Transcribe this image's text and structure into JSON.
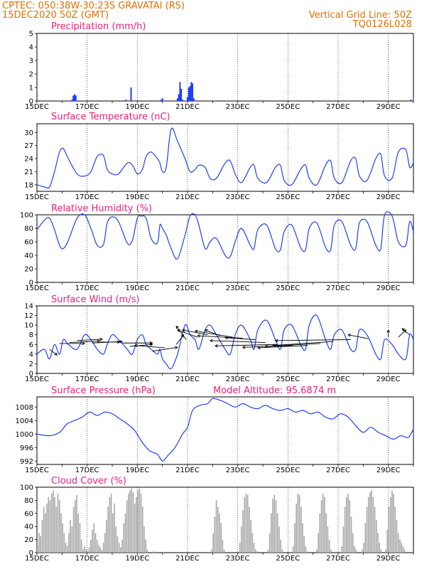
{
  "header": {
    "line1": "CPTEC:   050:38W-30:23S   GRAVATAI (RS)",
    "line2": "15DEC2020 50Z (GMT)",
    "right1": "Vertical Grid Line: 50Z",
    "right2": "TQ0126L028",
    "color": "#e07000"
  },
  "colors": {
    "title": "#e8207a",
    "line": "#1f3ff5",
    "cloud": "#a8a8a8",
    "bar": "#1f3ff5"
  },
  "x_axis": {
    "labels": [
      "15DEC",
      "17DEC",
      "19DEC",
      "21DEC",
      "23DEC",
      "25DEC",
      "27DEC",
      "29DEC"
    ],
    "label_days": [
      0,
      2,
      4,
      6,
      8,
      10,
      12,
      14
    ],
    "range_days": [
      0,
      15
    ]
  },
  "chart_data": [
    {
      "type": "bar",
      "title": "Precipitation (mm/h)",
      "ylim": [
        0,
        5
      ],
      "yticks": [
        0,
        1,
        2,
        3,
        4,
        5
      ],
      "x": [
        1.4,
        1.45,
        1.5,
        1.55,
        3.55,
        3.75,
        4.95,
        5.0,
        5.6,
        5.65,
        5.7,
        5.75,
        5.8,
        6.0,
        6.05,
        6.1,
        6.15,
        6.2,
        6.25,
        14.9
      ],
      "values": [
        0.1,
        0.4,
        0.5,
        0.4,
        0.1,
        1.0,
        0.1,
        0.2,
        0.2,
        0.5,
        1.4,
        0.9,
        0.1,
        0.3,
        1.0,
        1.1,
        1.4,
        1.3,
        0.2,
        0.1
      ]
    },
    {
      "type": "line",
      "title": "Surface Temperature (nC)",
      "ylim": [
        16.5,
        32
      ],
      "yticks": [
        18,
        21,
        24,
        27,
        30
      ],
      "x": [
        0,
        0.3,
        0.5,
        0.7,
        0.9,
        1.05,
        1.25,
        1.6,
        1.9,
        2.15,
        2.4,
        2.65,
        2.8,
        3.0,
        3.25,
        3.6,
        3.8,
        4.0,
        4.2,
        4.35,
        4.55,
        4.8,
        4.9,
        5.0,
        5.15,
        5.35,
        5.6,
        5.9,
        6.1,
        6.3,
        6.45,
        6.7,
        6.9,
        7.15,
        7.5,
        7.7,
        7.9,
        8.15,
        8.5,
        8.65,
        8.8,
        9.15,
        9.5,
        9.7,
        9.85,
        10.15,
        10.5,
        10.7,
        10.85,
        11.15,
        11.5,
        11.7,
        11.85,
        12.15,
        12.5,
        12.7,
        12.85,
        13.15,
        13.5,
        13.7,
        13.85,
        14.15,
        14.4,
        14.7,
        14.85,
        15.0
      ],
      "values": [
        18,
        17.5,
        17.5,
        21,
        25.5,
        26.3,
        24,
        20.5,
        20,
        21,
        24.5,
        24.7,
        21.5,
        20.5,
        20.5,
        23,
        22.5,
        20.5,
        21.5,
        24.5,
        25.5,
        24,
        23,
        21,
        22,
        30.8,
        28,
        24,
        21,
        21.5,
        22.5,
        22,
        19.5,
        19.5,
        23,
        23.5,
        20.5,
        18.5,
        22,
        22.5,
        19.5,
        18.5,
        22,
        22.5,
        19,
        18,
        21.5,
        22.5,
        19.5,
        18,
        22.5,
        23.5,
        19.5,
        18.5,
        23.5,
        24,
        20,
        19,
        24,
        25,
        20,
        19.5,
        25.5,
        26,
        22,
        23
      ]
    },
    {
      "type": "line",
      "title": "Relative Humidity (%)",
      "ylim": [
        0,
        100
      ],
      "yticks": [
        0,
        20,
        40,
        60,
        80,
        100
      ],
      "x": [
        0,
        0.3,
        0.5,
        0.7,
        0.9,
        1.05,
        1.25,
        1.6,
        1.9,
        2.15,
        2.4,
        2.65,
        2.8,
        3.0,
        3.25,
        3.6,
        3.8,
        4.0,
        4.15,
        4.35,
        4.55,
        4.8,
        4.9,
        5.0,
        5.15,
        5.35,
        5.6,
        5.9,
        6.1,
        6.3,
        6.45,
        6.7,
        6.9,
        7.15,
        7.5,
        7.7,
        7.9,
        8.15,
        8.5,
        8.65,
        8.8,
        9.15,
        9.5,
        9.7,
        9.85,
        10.15,
        10.5,
        10.7,
        10.85,
        11.15,
        11.5,
        11.7,
        11.85,
        12.15,
        12.5,
        12.7,
        12.85,
        13.15,
        13.5,
        13.7,
        13.85,
        14.15,
        14.4,
        14.7,
        14.85,
        15.0
      ],
      "values": [
        78,
        92,
        95,
        78,
        55,
        50,
        62,
        95,
        100,
        80,
        55,
        56,
        88,
        97,
        90,
        58,
        62,
        95,
        98,
        95,
        65,
        58,
        85,
        80,
        70,
        50,
        35,
        70,
        98,
        100,
        85,
        50,
        60,
        65,
        40,
        38,
        60,
        80,
        55,
        50,
        78,
        85,
        50,
        48,
        75,
        85,
        52,
        48,
        80,
        88,
        52,
        48,
        85,
        90,
        55,
        50,
        88,
        90,
        55,
        50,
        100,
        98,
        60,
        55,
        90,
        75
      ]
    },
    {
      "type": "line",
      "title": "Surface Wind (m/s)",
      "ylim": [
        0,
        14
      ],
      "yticks": [
        0,
        2,
        4,
        6,
        8,
        10,
        12,
        14
      ],
      "x": [
        0,
        0.3,
        0.5,
        0.7,
        0.9,
        1.05,
        1.25,
        1.6,
        1.9,
        2.15,
        2.4,
        2.65,
        2.8,
        3.0,
        3.25,
        3.6,
        3.8,
        4.0,
        4.2,
        4.35,
        4.55,
        4.8,
        4.9,
        5.0,
        5.15,
        5.35,
        5.6,
        5.9,
        6.1,
        6.3,
        6.45,
        6.7,
        6.9,
        7.15,
        7.5,
        7.7,
        7.9,
        8.15,
        8.5,
        8.65,
        8.8,
        9.15,
        9.5,
        9.7,
        9.85,
        10.15,
        10.5,
        10.7,
        10.85,
        11.15,
        11.5,
        11.7,
        11.85,
        12.15,
        12.5,
        12.7,
        12.85,
        13.15,
        13.5,
        13.7,
        13.85,
        14.15,
        14.4,
        14.7,
        14.85,
        15.0
      ],
      "values": [
        4,
        5,
        3,
        6,
        4,
        7,
        6,
        5,
        8,
        7,
        5,
        4,
        6,
        8,
        7,
        5,
        4,
        7,
        8,
        6,
        5,
        4,
        5,
        3,
        2,
        1,
        4,
        10,
        8,
        7,
        5,
        9,
        10,
        8,
        5,
        4,
        8,
        10,
        7,
        5,
        9,
        11,
        7,
        5,
        9,
        10,
        6,
        5,
        10,
        12,
        7,
        5,
        8,
        9,
        5,
        5,
        9,
        8,
        4,
        3,
        7,
        6,
        4,
        3,
        8,
        7
      ],
      "arrows": [
        {
          "x": 0.5,
          "y": 5,
          "u": 0.3,
          "v": -1.2
        },
        {
          "x": 0.9,
          "y": 6.2,
          "u": 1,
          "v": 0
        },
        {
          "x": 1.3,
          "y": 6.4,
          "u": 1.2,
          "v": 0.3
        },
        {
          "x": 1.6,
          "y": 6.8,
          "u": 1,
          "v": 0.3
        },
        {
          "x": 2.2,
          "y": 6.3,
          "u": 1.2,
          "v": 0.3
        },
        {
          "x": 2.5,
          "y": 6.5,
          "u": 0.8,
          "v": 0
        },
        {
          "x": 3.4,
          "y": 6.3,
          "u": 1.2,
          "v": 0
        },
        {
          "x": 3.7,
          "y": 5.6,
          "u": 0.9,
          "v": 0.4
        },
        {
          "x": 4.6,
          "y": 4.6,
          "u": 1,
          "v": 0.8
        },
        {
          "x": 5.1,
          "y": 5.3,
          "u": -1.2,
          "v": 0.5
        },
        {
          "x": 5.55,
          "y": 6,
          "u": 0.3,
          "v": 2
        },
        {
          "x": 5.95,
          "y": 7,
          "u": -0.4,
          "v": 2.8
        },
        {
          "x": 6.4,
          "y": 7.5,
          "u": -0.8,
          "v": 1.5
        },
        {
          "x": 6.8,
          "y": 8,
          "u": -1,
          "v": 1
        },
        {
          "x": 7.3,
          "y": 7.8,
          "u": -0.6,
          "v": 1.2
        },
        {
          "x": 7.8,
          "y": 7.5,
          "u": -1.5,
          "v": 1.3
        },
        {
          "x": 8.2,
          "y": 7.3,
          "u": -1.8,
          "v": 0.5
        },
        {
          "x": 8.7,
          "y": 7,
          "u": -1.2,
          "v": 0.4
        },
        {
          "x": 9.1,
          "y": 6.4,
          "u": -2.2,
          "v": 0.4
        },
        {
          "x": 9.6,
          "y": 6,
          "u": -2.5,
          "v": -0.3
        },
        {
          "x": 10.2,
          "y": 5.8,
          "u": -2,
          "v": -0.4
        },
        {
          "x": 10.8,
          "y": 5.8,
          "u": -2,
          "v": -0.5
        },
        {
          "x": 11.3,
          "y": 6.2,
          "u": -2.2,
          "v": -0.6
        },
        {
          "x": 11.8,
          "y": 6.6,
          "u": -2.4,
          "v": -0.8
        },
        {
          "x": 12.5,
          "y": 7,
          "u": -3,
          "v": -0.2
        },
        {
          "x": 13.2,
          "y": 7.2,
          "u": -0.8,
          "v": 0.8
        },
        {
          "x": 14.0,
          "y": 7.5,
          "u": 0,
          "v": 1.5
        },
        {
          "x": 14.4,
          "y": 7.5,
          "u": 0.3,
          "v": 1.5
        },
        {
          "x": 14.85,
          "y": 8,
          "u": -0.3,
          "v": 1.3
        }
      ]
    },
    {
      "type": "line",
      "title": "Surface Pressure (hPa)",
      "annotation": "Model Altitude: 95.6874 m",
      "ylim": [
        991,
        1011
      ],
      "yticks": [
        992,
        996,
        1000,
        1004,
        1008
      ],
      "x": [
        0,
        0.5,
        0.9,
        1.2,
        1.5,
        1.8,
        2.1,
        2.4,
        2.7,
        3.0,
        3.3,
        3.6,
        3.9,
        4.2,
        4.5,
        4.8,
        5.0,
        5.2,
        5.5,
        5.8,
        6.0,
        6.2,
        6.5,
        6.8,
        7.0,
        7.3,
        7.6,
        7.9,
        8.2,
        8.5,
        8.8,
        9.1,
        9.4,
        9.7,
        10.0,
        10.3,
        10.6,
        10.9,
        11.2,
        11.5,
        11.8,
        12.1,
        12.4,
        12.7,
        13.0,
        13.3,
        13.6,
        13.9,
        14.2,
        14.5,
        14.8,
        15.0
      ],
      "values": [
        1000,
        999.5,
        1000.5,
        1003,
        1004,
        1005,
        1006.5,
        1005.5,
        1006.5,
        1006,
        1004.5,
        1003,
        1001,
        997.5,
        995,
        994,
        992,
        993.5,
        996,
        1000,
        1002,
        1007,
        1008.5,
        1009,
        1010.5,
        1010,
        1009,
        1008,
        1009,
        1008,
        1007.5,
        1008.5,
        1007.5,
        1007,
        1007.5,
        1006.5,
        1007,
        1006,
        1006.5,
        1005,
        1004.5,
        1006,
        1005,
        1002.5,
        1000.5,
        1002,
        1000.5,
        999.5,
        998.5,
        999.5,
        999,
        1001.5
      ]
    },
    {
      "type": "bar",
      "title": "Cloud Cover (%)",
      "ylim": [
        0,
        100
      ],
      "yticks": [
        0,
        20,
        40,
        60,
        80,
        100
      ],
      "x_start": 0,
      "x_step": 0.0625,
      "values": [
        10,
        30,
        25,
        50,
        70,
        60,
        75,
        85,
        80,
        90,
        95,
        85,
        70,
        90,
        80,
        60,
        45,
        30,
        15,
        10,
        30,
        50,
        40,
        70,
        80,
        88,
        60,
        45,
        20,
        5,
        10,
        5,
        3,
        8,
        20,
        35,
        45,
        30,
        20,
        12,
        8,
        4,
        15,
        30,
        50,
        70,
        85,
        90,
        60,
        75,
        40,
        25,
        15,
        8,
        20,
        45,
        60,
        80,
        90,
        95,
        98,
        92,
        75,
        85,
        95,
        98,
        90,
        70,
        40,
        20,
        5,
        0,
        0,
        0,
        2,
        1,
        0,
        0,
        0,
        0,
        1,
        0,
        0,
        0,
        0,
        0,
        0,
        0,
        0,
        0,
        0,
        0,
        0,
        0,
        0,
        0,
        0,
        0,
        0,
        0,
        0,
        0,
        0,
        0,
        0,
        0,
        0,
        0,
        0,
        0,
        0,
        5,
        30,
        55,
        80,
        70,
        60,
        45,
        20,
        5,
        0,
        0,
        0,
        0,
        0,
        0,
        0,
        0,
        0,
        15,
        40,
        65,
        85,
        90,
        88,
        70,
        50,
        30,
        15,
        5,
        2,
        0,
        0,
        0,
        0,
        0,
        0,
        5,
        30,
        60,
        82,
        88,
        80,
        60,
        40,
        20,
        5,
        0,
        0,
        0,
        0,
        0,
        0,
        10,
        45,
        75,
        90,
        88,
        70,
        45,
        25,
        10,
        2,
        0,
        0,
        0,
        0,
        0,
        5,
        30,
        60,
        80,
        90,
        85,
        60,
        40,
        20,
        5,
        0,
        0,
        0,
        0,
        0,
        0,
        10,
        40,
        70,
        85,
        90,
        80,
        55,
        30,
        10,
        5,
        0,
        0,
        0,
        5,
        15,
        45,
        70,
        85,
        92,
        95,
        85,
        70,
        50,
        30,
        15,
        5,
        0,
        0,
        5,
        35,
        70,
        85,
        95,
        90,
        70,
        50,
        30,
        20,
        15,
        10,
        5,
        0,
        0,
        0,
        0
      ]
    }
  ]
}
